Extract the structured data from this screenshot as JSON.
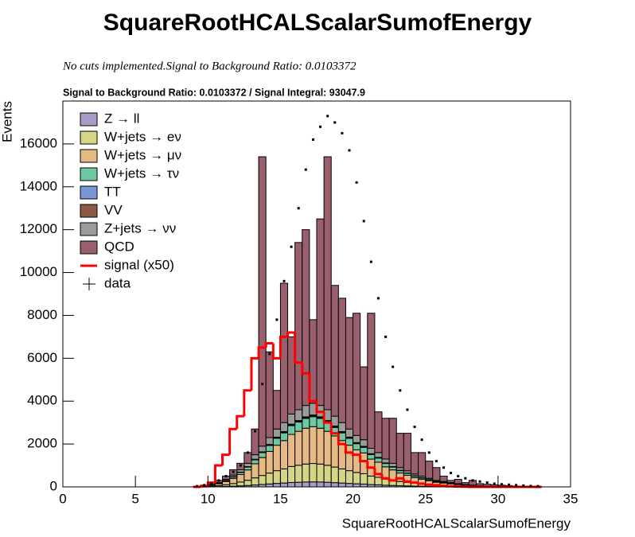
{
  "chart_data": {
    "type": "histogram",
    "title": "SquareRootHCALScalarSumofEnergy",
    "subtitle": "No cuts implemented.Signal to Background Ratio: 0.0103372",
    "plot_title": "Signal to Background Ratio: 0.0103372 / Signal Integral: 93047.9",
    "x_label": "SquareRootHCALScalarSumofEnergy",
    "y_label": "Events",
    "xlim": [
      0,
      35
    ],
    "ylim": [
      0,
      18000
    ],
    "xticks": [
      0,
      5,
      10,
      15,
      20,
      25,
      30,
      35
    ],
    "yticks": [
      0,
      2000,
      4000,
      6000,
      8000,
      10000,
      12000,
      14000,
      16000
    ],
    "legend": "top-left",
    "bins": [
      9,
      9.5,
      10,
      10.5,
      11,
      11.5,
      12,
      12.5,
      13,
      13.5,
      14,
      14.5,
      15,
      15.5,
      16,
      16.5,
      17,
      17.5,
      18,
      18.5,
      19,
      19.5,
      20,
      20.5,
      21,
      21.5,
      22,
      22.5,
      23,
      23.5,
      24,
      24.5,
      25,
      25.5,
      26,
      26.5,
      27,
      27.5,
      28,
      28.5,
      29,
      29.5,
      30,
      30.5,
      31,
      31.5,
      32,
      32.5,
      33
    ],
    "series": [
      {
        "name": "Z → ll",
        "color": "#a99cc6",
        "style": "stacked",
        "values": [
          1,
          3,
          6,
          12,
          21,
          33,
          48,
          66,
          90,
          114,
          138,
          162,
          180,
          204,
          216,
          228,
          234,
          228,
          216,
          198,
          180,
          162,
          144,
          132,
          108,
          96,
          78,
          66,
          54,
          45,
          36,
          30,
          24,
          18,
          15,
          12,
          9,
          7,
          5,
          4,
          2,
          2,
          1,
          1,
          1,
          0,
          0,
          0
        ]
      },
      {
        "name": "W+jets → eν",
        "color": "#d4d686",
        "style": "stacked",
        "values": [
          4,
          11,
          22,
          44,
          77,
          121,
          176,
          242,
          330,
          418,
          506,
          594,
          660,
          748,
          792,
          836,
          858,
          836,
          792,
          726,
          660,
          594,
          528,
          484,
          396,
          352,
          286,
          242,
          198,
          165,
          132,
          110,
          88,
          66,
          55,
          44,
          33,
          24,
          18,
          13,
          9,
          7,
          4,
          3,
          2,
          2,
          1,
          1
        ]
      },
      {
        "name": "W+jets → μν",
        "color": "#e6b985",
        "style": "stacked",
        "values": [
          9,
          22,
          44,
          88,
          154,
          242,
          352,
          484,
          660,
          836,
          1012,
          1188,
          1320,
          1496,
          1584,
          1672,
          1716,
          1672,
          1584,
          1452,
          1320,
          1188,
          1056,
          968,
          792,
          704,
          572,
          484,
          396,
          330,
          264,
          220,
          176,
          132,
          110,
          88,
          66,
          48,
          35,
          26,
          18,
          13,
          9,
          7,
          4,
          4,
          2,
          1
        ]
      },
      {
        "name": "W+jets → τν",
        "color": "#6dc9a2",
        "style": "stacked",
        "values": [
          2,
          6,
          12,
          24,
          42,
          66,
          96,
          132,
          180,
          228,
          276,
          324,
          360,
          408,
          432,
          456,
          468,
          456,
          432,
          396,
          360,
          324,
          288,
          264,
          216,
          192,
          156,
          132,
          108,
          90,
          72,
          60,
          48,
          36,
          30,
          24,
          18,
          13,
          10,
          7,
          5,
          4,
          2,
          2,
          1,
          1,
          1,
          0
        ]
      },
      {
        "name": "TT",
        "color": "#7b96d6",
        "style": "stacked",
        "values": [
          0,
          1,
          1,
          2,
          4,
          6,
          8,
          11,
          15,
          19,
          23,
          27,
          30,
          34,
          36,
          38,
          39,
          38,
          36,
          33,
          30,
          27,
          24,
          22,
          18,
          16,
          13,
          11,
          9,
          8,
          6,
          5,
          4,
          3,
          3,
          2,
          2,
          1,
          1,
          1,
          0,
          0,
          0,
          0,
          0,
          0,
          0,
          0
        ]
      },
      {
        "name": "VV",
        "color": "#8a5a47",
        "style": "stacked",
        "values": [
          0,
          1,
          1,
          2,
          4,
          6,
          8,
          11,
          15,
          19,
          23,
          27,
          30,
          34,
          36,
          38,
          39,
          38,
          36,
          33,
          30,
          27,
          24,
          22,
          18,
          16,
          13,
          11,
          9,
          8,
          6,
          5,
          4,
          3,
          3,
          2,
          2,
          1,
          1,
          1,
          0,
          0,
          0,
          0,
          0,
          0,
          0,
          0
        ]
      },
      {
        "name": "Z+jets → νν",
        "color": "#9b9b9b",
        "style": "stacked",
        "values": [
          3,
          7,
          14,
          28,
          49,
          77,
          112,
          154,
          210,
          266,
          322,
          378,
          420,
          476,
          504,
          532,
          546,
          532,
          504,
          462,
          420,
          378,
          336,
          308,
          252,
          224,
          182,
          154,
          126,
          105,
          84,
          70,
          56,
          42,
          35,
          28,
          21,
          15,
          11,
          8,
          6,
          4,
          3,
          2,
          1,
          1,
          1,
          0
        ]
      },
      {
        "name": "QCD",
        "color": "#9a5f6c",
        "style": "stacked",
        "values": [
          10,
          30,
          50,
          100,
          150,
          250,
          300,
          500,
          1200,
          13500,
          4000,
          1800,
          6500,
          3600,
          7800,
          8200,
          3900,
          8700,
          11800,
          6100,
          5800,
          5200,
          5700,
          3400,
          6300,
          1900,
          1900,
          2100,
          1600,
          1750,
          1000,
          1100,
          800,
          600,
          250,
          100,
          200,
          90,
          220,
          90,
          80,
          70,
          60,
          45,
          30,
          22,
          15,
          7
        ]
      },
      {
        "name": "signal (x50)",
        "color": "#ff0000",
        "style": "line",
        "values": [
          0,
          30,
          200,
          1000,
          1500,
          2700,
          3300,
          4500,
          6000,
          6500,
          6700,
          6000,
          7000,
          7200,
          5800,
          5300,
          4000,
          3500,
          3000,
          2500,
          2000,
          1600,
          1500,
          1200,
          900,
          600,
          400,
          300,
          400,
          250,
          200,
          150,
          100,
          80,
          50,
          30,
          20,
          10,
          0,
          0,
          0,
          0,
          0,
          0,
          0,
          0,
          0,
          0
        ]
      },
      {
        "name": "data",
        "color": "#000000",
        "style": "points",
        "values": [
          30,
          80,
          150,
          300,
          500,
          700,
          1000,
          1600,
          2600,
          4800,
          6200,
          7800,
          9600,
          11200,
          13000,
          14800,
          16200,
          16800,
          17300,
          17000,
          16500,
          15700,
          14200,
          12400,
          10500,
          8800,
          7000,
          5600,
          4500,
          3600,
          2800,
          2200,
          1600,
          1200,
          900,
          650,
          500,
          400,
          300,
          250,
          200,
          150,
          120,
          100,
          80,
          60,
          40,
          30
        ]
      }
    ]
  }
}
